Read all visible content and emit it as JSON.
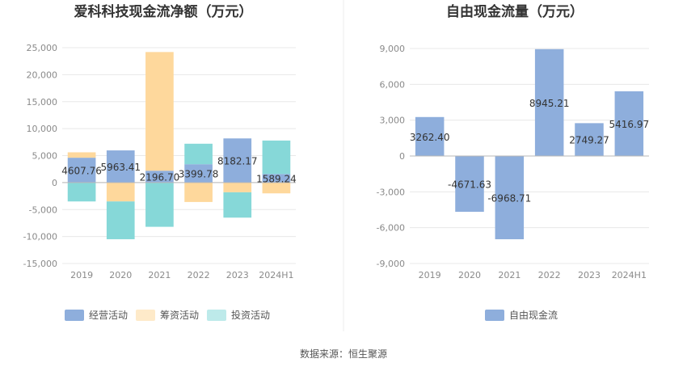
{
  "source_label": "数据来源：恒生聚源",
  "chart_data": [
    {
      "type": "bar",
      "stacked": true,
      "title": "爱科科技现金流净额（万元）",
      "categories": [
        "2019",
        "2020",
        "2021",
        "2022",
        "2023",
        "2024H1"
      ],
      "ylim": [
        -15000,
        25000
      ],
      "yticks": [
        -15000,
        -10000,
        -5000,
        0,
        5000,
        10000,
        15000,
        20000,
        25000
      ],
      "ytick_labels": [
        "-15,000",
        "-10,000",
        "-5,000",
        "0",
        "5,000",
        "10,000",
        "15,000",
        "20,000",
        "25,000"
      ],
      "grid": true,
      "legend_position": "bottom",
      "series": [
        {
          "name": "经营活动",
          "color": "#8eaedc",
          "values": [
            4607.76,
            5963.41,
            2196.7,
            3399.78,
            8182.17,
            1589.24
          ]
        },
        {
          "name": "筹资活动",
          "color": "#fed89c",
          "values": [
            1000,
            -3500,
            22000,
            -3600,
            -1800,
            -2000
          ]
        },
        {
          "name": "投资活动",
          "color": "#86d8d8",
          "values": [
            -3500,
            -7000,
            -8200,
            3800,
            -4700,
            6200
          ]
        }
      ],
      "data_labels": [
        "4607.76",
        "5963.41",
        "2196.70",
        "3399.78",
        "8182.17",
        "1589.24"
      ]
    },
    {
      "type": "bar",
      "title": "自由现金流量（万元）",
      "categories": [
        "2019",
        "2020",
        "2021",
        "2022",
        "2023",
        "2024H1"
      ],
      "ylim": [
        -9000,
        9000
      ],
      "yticks": [
        -9000,
        -6000,
        -3000,
        0,
        3000,
        6000,
        9000
      ],
      "ytick_labels": [
        "-9,000",
        "-6,000",
        "-3,000",
        "0",
        "3,000",
        "6,000",
        "9,000"
      ],
      "grid": true,
      "legend_position": "bottom",
      "series": [
        {
          "name": "自由现金流",
          "color": "#8eaedc",
          "values": [
            3262.4,
            -4671.63,
            -6968.71,
            8945.21,
            2749.27,
            5416.97
          ]
        }
      ],
      "data_labels": [
        "3262.40",
        "-4671.63",
        "-6968.71",
        "8945.21",
        "2749.27",
        "5416.97"
      ]
    }
  ]
}
